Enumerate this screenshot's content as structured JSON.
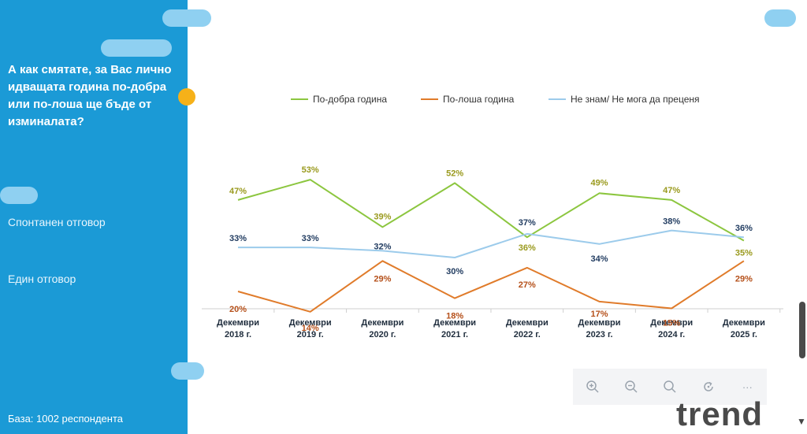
{
  "sidebar": {
    "question": "А как смятате, за Вас лично идващата година по-добра или по-лоша ще бъде от изминалата?",
    "option_spontaneous": "Спонтанен отговор",
    "option_single": "Един отговор",
    "base": "База:  1002 респондента"
  },
  "toolbar": {
    "more_label": "···"
  },
  "logo": {
    "text": "trend"
  },
  "colors": {
    "sidebar": "#1b9ad6",
    "better": "#8cc63f",
    "worse": "#e07b2a",
    "dontknow": "#9ccbeb",
    "label_better": "#9a9a1e",
    "label_worse": "#b5501a",
    "label_dontknow": "#1f3a5f"
  },
  "chart_data": {
    "type": "line",
    "categories": [
      [
        "Декември",
        "2018 г."
      ],
      [
        "Декември",
        "2019 г."
      ],
      [
        "Декември",
        "2020 г."
      ],
      [
        "Декември",
        "2021 г."
      ],
      [
        "Декември",
        "2022 г."
      ],
      [
        "Декември",
        "2023 г."
      ],
      [
        "Декември",
        "2024 г."
      ],
      [
        "Декември",
        "2025 г."
      ]
    ],
    "series": [
      {
        "key": "better",
        "name": "По-добра година",
        "values": [
          47,
          53,
          39,
          52,
          36,
          49,
          47,
          35
        ],
        "labels": [
          "47%",
          "53%",
          "39%",
          "52%",
          "36%",
          "49%",
          "47%",
          "35%"
        ]
      },
      {
        "key": "worse",
        "name": "По-лоша година",
        "values": [
          20,
          14,
          29,
          18,
          27,
          17,
          15,
          29
        ],
        "labels": [
          "20%",
          "14%",
          "29%",
          "18%",
          "27%",
          "17%",
          "15%",
          "29%"
        ]
      },
      {
        "key": "dontknow",
        "name": "Не знам/ Не мога да преценя",
        "values": [
          33,
          33,
          32,
          30,
          37,
          34,
          38,
          36
        ],
        "labels": [
          "33%",
          "33%",
          "32%",
          "30%",
          "37%",
          "34%",
          "38%",
          "36%"
        ]
      }
    ],
    "ylim": [
      0,
      80
    ],
    "legend": "top"
  }
}
